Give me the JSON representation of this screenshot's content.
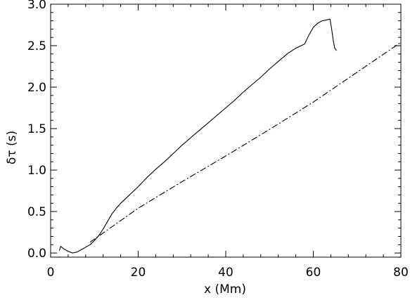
{
  "chart_data": {
    "type": "line",
    "xlabel": "x (Mm)",
    "ylabel": "δτ (s)",
    "xlim": [
      0,
      80
    ],
    "ylim": [
      -0.05,
      3.0
    ],
    "xticks": [
      0,
      20,
      40,
      60,
      80
    ],
    "xtick_labels": [
      "0",
      "20",
      "40",
      "60",
      "80"
    ],
    "yticks": [
      0.0,
      0.5,
      1.0,
      1.5,
      2.0,
      2.5,
      3.0
    ],
    "ytick_labels": [
      "0.0",
      "0.5",
      "1.0",
      "1.5",
      "2.0",
      "2.5",
      "3.0"
    ],
    "grid": false,
    "legend": "none",
    "series": [
      {
        "style": "solid",
        "color": "#000000",
        "x": [
          2.0,
          2.3,
          3.0,
          4.0,
          5.0,
          6.0,
          7.0,
          8.0,
          9.0,
          10.0,
          11.0,
          12.0,
          13.0,
          14.0,
          15.0,
          16.0,
          18.0,
          20.0,
          22.0,
          24.0,
          26.0,
          28.0,
          30.0,
          32.0,
          34.0,
          36.0,
          38.0,
          40.0,
          42.0,
          44.0,
          46.0,
          48.0,
          50.0,
          52.0,
          54.0,
          56.0,
          58.0,
          59.0,
          60.0,
          61.0,
          62.0,
          63.0,
          63.8,
          64.2,
          64.6,
          64.9,
          65.3
        ],
        "y": [
          0.03,
          0.08,
          0.05,
          0.02,
          0.0,
          0.01,
          0.04,
          0.07,
          0.1,
          0.15,
          0.21,
          0.29,
          0.38,
          0.47,
          0.54,
          0.6,
          0.7,
          0.8,
          0.91,
          1.01,
          1.1,
          1.2,
          1.3,
          1.39,
          1.48,
          1.57,
          1.66,
          1.75,
          1.84,
          1.94,
          2.03,
          2.12,
          2.22,
          2.31,
          2.4,
          2.47,
          2.52,
          2.63,
          2.72,
          2.77,
          2.8,
          2.81,
          2.82,
          2.7,
          2.55,
          2.47,
          2.44
        ]
      },
      {
        "style": "dash-dot",
        "color": "#000000",
        "x": [
          9.0,
          20.0,
          30.0,
          40.0,
          50.0,
          60.0,
          70.0,
          80.0
        ],
        "y": [
          0.13,
          0.54,
          0.86,
          1.17,
          1.49,
          1.82,
          2.18,
          2.54
        ]
      }
    ]
  }
}
